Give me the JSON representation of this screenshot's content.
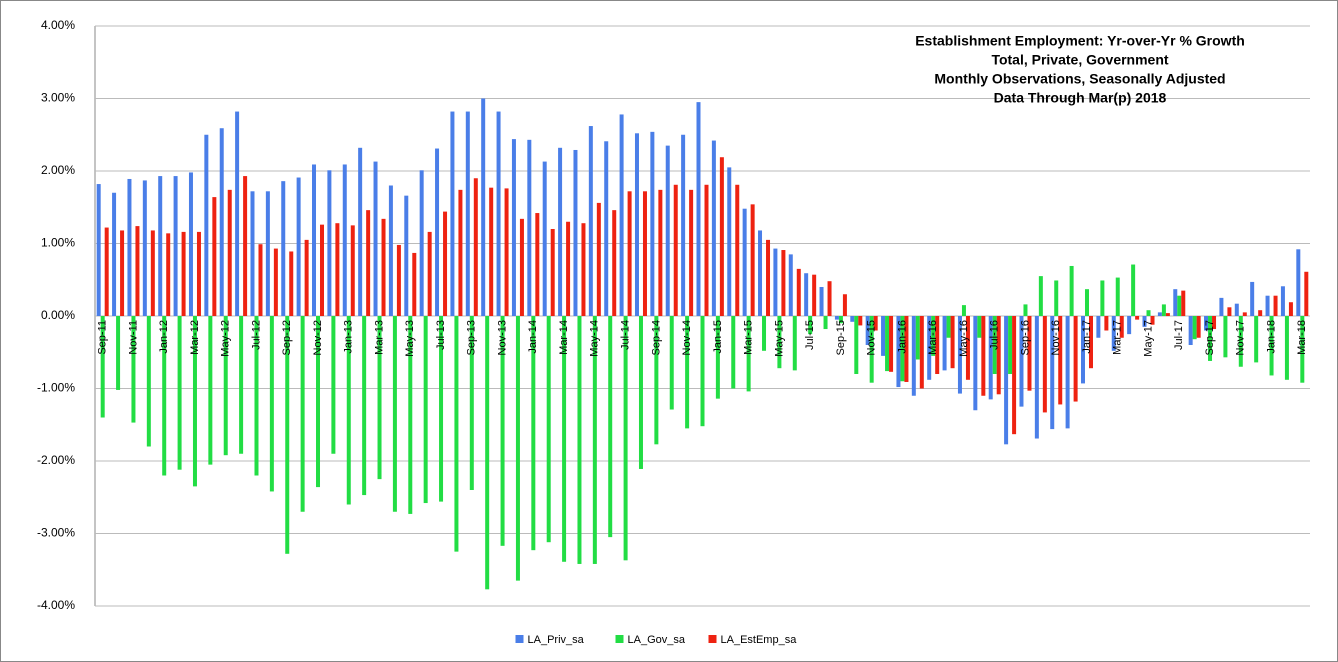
{
  "chart_data": {
    "type": "bar",
    "title": [
      "Establishment Employment: Yr-over-Yr % Growth",
      "Total, Private, Government",
      "Monthly Observations, Seasonally Adjusted",
      "Data Through Mar(p) 2018"
    ],
    "categories": [
      "Sep-11",
      null,
      "Nov-11",
      null,
      "Jan-12",
      null,
      "Mar-12",
      null,
      "May-12",
      null,
      "Jul-12",
      null,
      "Sep-12",
      null,
      "Nov-12",
      null,
      "Jan-13",
      null,
      "Mar-13",
      null,
      "May-13",
      null,
      "Jul-13",
      null,
      "Sep-13",
      null,
      "Nov-13",
      null,
      "Jan-14",
      null,
      "Mar-14",
      null,
      "May-14",
      null,
      "Jul-14",
      null,
      "Sep-14",
      null,
      "Nov-14",
      null,
      "Jan-15",
      null,
      "Mar-15",
      null,
      "May-15",
      null,
      "Jul-15",
      null,
      "Sep-15",
      null,
      "Nov-15",
      null,
      "Jan-16",
      null,
      "Mar-16",
      null,
      "May-16",
      null,
      "Jul-16",
      null,
      "Sep-16",
      null,
      "Nov-16",
      null,
      "Jan-17",
      null,
      "Mar-17",
      null,
      "May-17",
      null,
      "Jul-17",
      null,
      "Sep-17",
      null,
      "Nov-17",
      null,
      "Jan-18",
      null,
      "Mar-18"
    ],
    "series": [
      {
        "name": "LA_Priv_sa",
        "color": "#4a7ee8",
        "values": [
          1.82,
          1.7,
          1.89,
          1.87,
          1.93,
          1.93,
          1.98,
          2.5,
          2.59,
          2.82,
          1.72,
          1.72,
          1.86,
          1.91,
          2.09,
          2.01,
          2.09,
          2.32,
          2.13,
          1.8,
          1.66,
          2.01,
          2.31,
          2.82,
          2.82,
          3.0,
          2.82,
          2.44,
          2.43,
          2.13,
          2.32,
          2.29,
          2.62,
          2.41,
          2.78,
          2.52,
          2.54,
          2.35,
          2.5,
          2.95,
          2.42,
          2.05,
          1.48,
          1.18,
          0.93,
          0.85,
          0.59,
          0.4,
          -0.05,
          -0.08,
          -0.4,
          -0.55,
          -0.98,
          -1.1,
          -0.88,
          -0.75,
          -1.07,
          -1.3,
          -1.15,
          -1.77,
          -1.25,
          -1.69,
          -1.56,
          -1.55,
          -0.93,
          -0.3,
          -0.48,
          -0.25,
          -0.15,
          0.05,
          0.37,
          -0.4,
          -0.2,
          0.25,
          0.17,
          0.47,
          0.28,
          0.41,
          0.92
        ]
      },
      {
        "name": "LA_Gov_sa",
        "color": "#22dd44",
        "values": [
          -1.4,
          -1.02,
          -1.47,
          -1.8,
          -2.2,
          -2.12,
          -2.35,
          -2.05,
          -1.92,
          -1.9,
          -2.2,
          -2.42,
          -3.28,
          -2.7,
          -2.36,
          -1.9,
          -2.6,
          -2.47,
          -2.25,
          -2.7,
          -2.73,
          -2.58,
          -2.56,
          -3.25,
          -2.4,
          -3.77,
          -3.17,
          -3.65,
          -3.23,
          -3.12,
          -3.39,
          -3.42,
          -3.42,
          -3.05,
          -3.37,
          -2.11,
          -1.77,
          -1.29,
          -1.55,
          -1.52,
          -1.14,
          -1.0,
          -1.04,
          -0.48,
          -0.72,
          -0.75,
          -0.25,
          -0.18,
          -0.1,
          -0.8,
          -0.92,
          -0.76,
          -0.9,
          -0.6,
          -0.55,
          -0.3,
          0.15,
          -0.3,
          -0.8,
          -0.8,
          0.16,
          0.55,
          0.49,
          0.69,
          0.37,
          0.49,
          0.53,
          0.71,
          0.08,
          0.16,
          0.28,
          -0.32,
          -0.62,
          -0.57,
          -0.7,
          -0.64,
          -0.82,
          -0.88,
          -0.92
        ]
      },
      {
        "name": "LA_EstEmp_sa",
        "color": "#ee2211",
        "values": [
          1.22,
          1.18,
          1.24,
          1.18,
          1.14,
          1.16,
          1.16,
          1.64,
          1.74,
          1.93,
          0.99,
          0.93,
          0.89,
          1.05,
          1.26,
          1.28,
          1.25,
          1.46,
          1.34,
          0.98,
          0.87,
          1.16,
          1.44,
          1.74,
          1.9,
          1.77,
          1.76,
          1.34,
          1.42,
          1.2,
          1.3,
          1.28,
          1.56,
          1.46,
          1.72,
          1.72,
          1.74,
          1.81,
          1.74,
          1.81,
          2.19,
          1.81,
          1.54,
          1.05,
          0.91,
          0.65,
          0.57,
          0.48,
          0.3,
          -0.13,
          -0.2,
          -0.77,
          -0.91,
          -1.0,
          -0.8,
          -0.72,
          -0.88,
          -1.1,
          -1.08,
          -1.63,
          -1.03,
          -1.33,
          -1.22,
          -1.18,
          -0.72,
          -0.2,
          -0.3,
          -0.05,
          -0.12,
          0.04,
          0.35,
          -0.3,
          -0.18,
          0.12,
          0.05,
          0.08,
          0.28,
          0.19,
          0.61
        ]
      }
    ],
    "ylim": [
      -4,
      4
    ],
    "yticks": [
      {
        "value": -4,
        "label": "-4.00%"
      },
      {
        "value": -3,
        "label": "-3.00%"
      },
      {
        "value": -2,
        "label": "-2.00%"
      },
      {
        "value": -1,
        "label": "-1.00%"
      },
      {
        "value": 0,
        "label": "0.00%"
      },
      {
        "value": 1,
        "label": "1.00%"
      },
      {
        "value": 2,
        "label": "2.00%"
      },
      {
        "value": 3,
        "label": "3.00%"
      },
      {
        "value": 4,
        "label": "4.00%"
      }
    ],
    "grid": true,
    "legend": "bottom"
  }
}
